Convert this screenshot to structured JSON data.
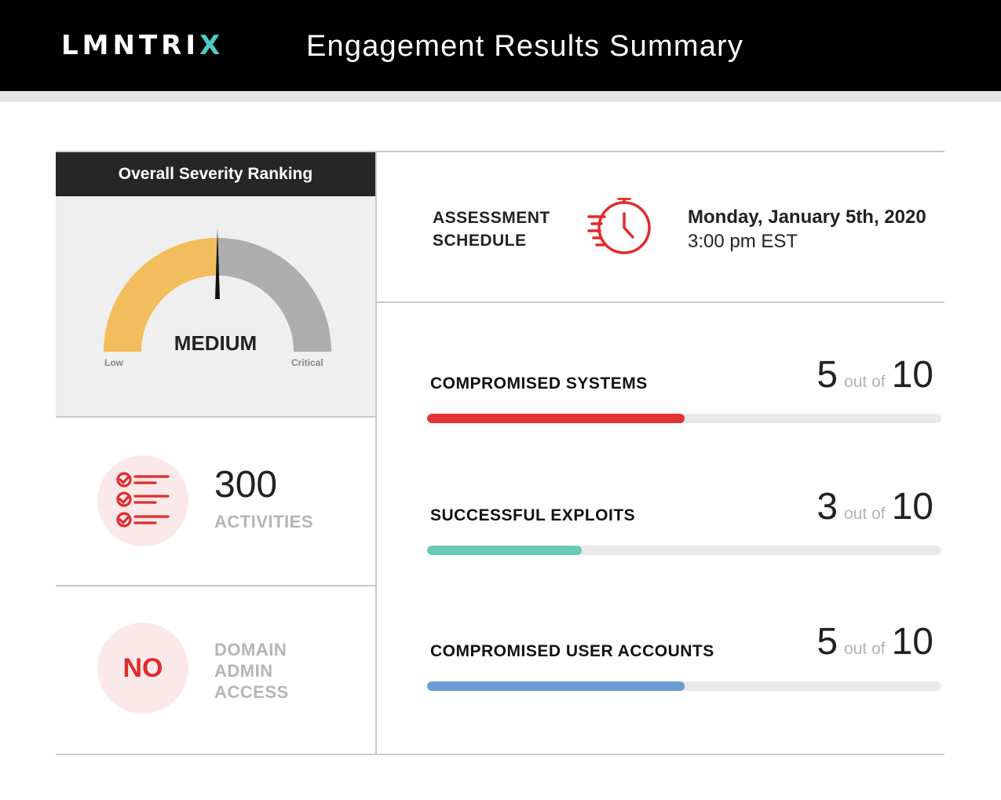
{
  "header": {
    "logo_main": "LMNTRI",
    "logo_accent": "X",
    "title": "Engagement Results Summary"
  },
  "severity": {
    "heading": "Overall Severity Ranking",
    "level": "MEDIUM",
    "low_label": "Low",
    "critical_label": "Critical",
    "value_fraction": 0.5
  },
  "activities": {
    "count": "300",
    "label": "ACTIVITIES",
    "icon": "checklist-icon"
  },
  "domain_admin": {
    "answer": "NO",
    "label_line1": "DOMAIN",
    "label_line2": "ADMIN",
    "label_line3": "ACCESS"
  },
  "schedule": {
    "label_line1": "ASSESSMENT",
    "label_line2": "SCHEDULE",
    "icon": "stopwatch-icon",
    "date": "Monday, January 5th, 2020",
    "time": "3:00 pm EST"
  },
  "metrics": [
    {
      "label": "COMPROMISED SYSTEMS",
      "value": "5",
      "out_of_text": "out of",
      "total": "10",
      "fraction": 0.5,
      "color": "#e23434"
    },
    {
      "label": "SUCCESSFUL EXPLOITS",
      "value": "3",
      "out_of_text": "out of",
      "total": "10",
      "fraction": 0.3,
      "color": "#68c9b5"
    },
    {
      "label": "COMPROMISED USER ACCOUNTS",
      "value": "5",
      "out_of_text": "out of",
      "total": "10",
      "fraction": 0.5,
      "color": "#6a9bd3"
    }
  ],
  "colors": {
    "accent_red": "#e02b2b",
    "gauge_low": "#f2bd5c",
    "gauge_high": "#adadad",
    "logo_accent": "#4fc9c8"
  }
}
